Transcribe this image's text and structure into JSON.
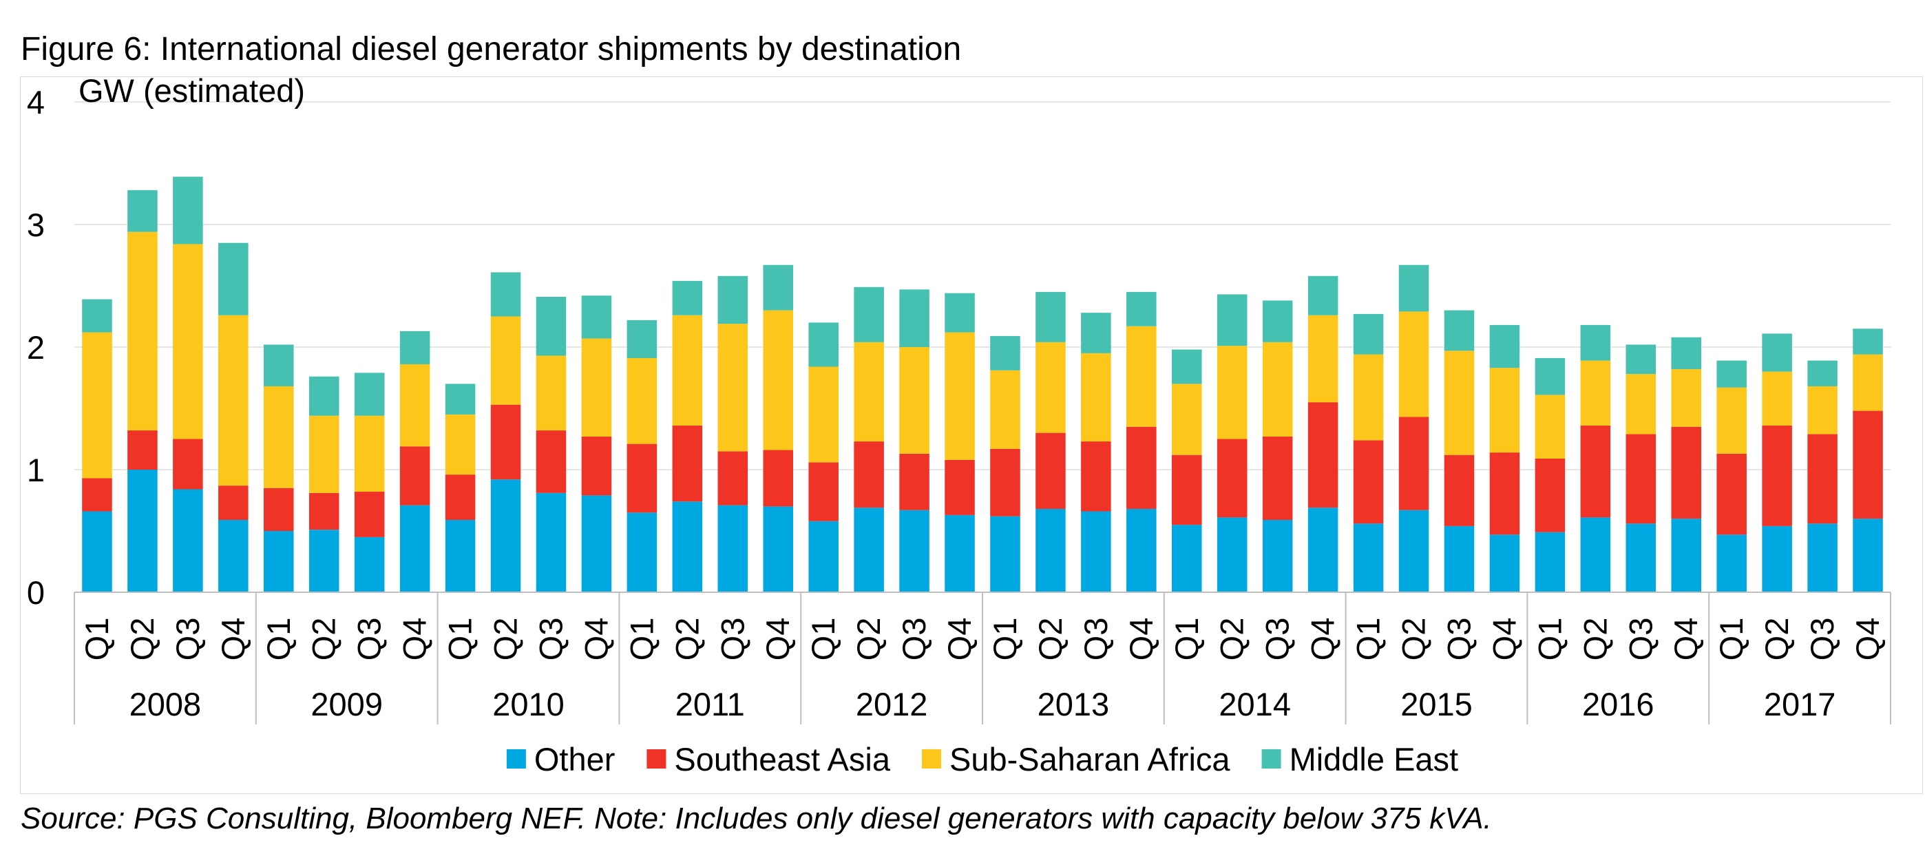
{
  "title": "Figure 6: International diesel generator shipments by destination",
  "source": "Source: PGS Consulting, Bloomberg NEF. Note: Includes only diesel generators with capacity below 375 kVA.",
  "chart_data": {
    "type": "bar",
    "stacked": true,
    "ylabel": "GW (estimated)",
    "ylim": [
      0,
      4
    ],
    "yticks": [
      0,
      1,
      2,
      3,
      4
    ],
    "grid": true,
    "legend_position": "bottom",
    "years": [
      "2008",
      "2009",
      "2010",
      "2011",
      "2012",
      "2013",
      "2014",
      "2015",
      "2016",
      "2017"
    ],
    "quarters": [
      "Q1",
      "Q2",
      "Q3",
      "Q4"
    ],
    "categories": [
      "2008 Q1",
      "2008 Q2",
      "2008 Q3",
      "2008 Q4",
      "2009 Q1",
      "2009 Q2",
      "2009 Q3",
      "2009 Q4",
      "2010 Q1",
      "2010 Q2",
      "2010 Q3",
      "2010 Q4",
      "2011 Q1",
      "2011 Q2",
      "2011 Q3",
      "2011 Q4",
      "2012 Q1",
      "2012 Q2",
      "2012 Q3",
      "2012 Q4",
      "2013 Q1",
      "2013 Q2",
      "2013 Q3",
      "2013 Q4",
      "2014 Q1",
      "2014 Q2",
      "2014 Q3",
      "2014 Q4",
      "2015 Q1",
      "2015 Q2",
      "2015 Q3",
      "2015 Q4",
      "2016 Q1",
      "2016 Q2",
      "2016 Q3",
      "2016 Q4",
      "2017 Q1",
      "2017 Q2",
      "2017 Q3",
      "2017 Q4"
    ],
    "series": [
      {
        "name": "Other",
        "color": "#00A8E1",
        "values": [
          0.66,
          1.0,
          0.84,
          0.59,
          0.5,
          0.51,
          0.45,
          0.71,
          0.59,
          0.92,
          0.81,
          0.79,
          0.65,
          0.74,
          0.71,
          0.7,
          0.58,
          0.69,
          0.67,
          0.63,
          0.62,
          0.68,
          0.66,
          0.68,
          0.55,
          0.61,
          0.59,
          0.69,
          0.56,
          0.67,
          0.54,
          0.47,
          0.49,
          0.61,
          0.56,
          0.6,
          0.47,
          0.54,
          0.56,
          0.6
        ]
      },
      {
        "name": "Southeast Asia",
        "color": "#EF3327",
        "values": [
          0.27,
          0.32,
          0.41,
          0.28,
          0.35,
          0.3,
          0.37,
          0.48,
          0.37,
          0.61,
          0.51,
          0.48,
          0.56,
          0.62,
          0.44,
          0.46,
          0.48,
          0.54,
          0.46,
          0.45,
          0.55,
          0.62,
          0.57,
          0.67,
          0.57,
          0.64,
          0.68,
          0.86,
          0.68,
          0.76,
          0.58,
          0.67,
          0.6,
          0.75,
          0.73,
          0.75,
          0.66,
          0.82,
          0.73,
          0.88
        ]
      },
      {
        "name": "Sub-Saharan Africa",
        "color": "#FCC71A",
        "values": [
          1.19,
          1.62,
          1.59,
          1.39,
          0.83,
          0.63,
          0.62,
          0.67,
          0.49,
          0.72,
          0.61,
          0.8,
          0.7,
          0.9,
          1.04,
          1.14,
          0.78,
          0.81,
          0.87,
          1.04,
          0.64,
          0.74,
          0.72,
          0.82,
          0.58,
          0.76,
          0.77,
          0.71,
          0.7,
          0.86,
          0.85,
          0.69,
          0.52,
          0.53,
          0.49,
          0.47,
          0.54,
          0.44,
          0.39,
          0.46
        ]
      },
      {
        "name": "Middle East",
        "color": "#46C0B0",
        "values": [
          0.27,
          0.34,
          0.55,
          0.59,
          0.34,
          0.32,
          0.35,
          0.27,
          0.25,
          0.36,
          0.48,
          0.35,
          0.31,
          0.28,
          0.39,
          0.37,
          0.36,
          0.45,
          0.47,
          0.32,
          0.28,
          0.41,
          0.33,
          0.28,
          0.28,
          0.42,
          0.34,
          0.32,
          0.33,
          0.38,
          0.33,
          0.35,
          0.3,
          0.29,
          0.24,
          0.26,
          0.22,
          0.31,
          0.21,
          0.21
        ]
      }
    ]
  }
}
